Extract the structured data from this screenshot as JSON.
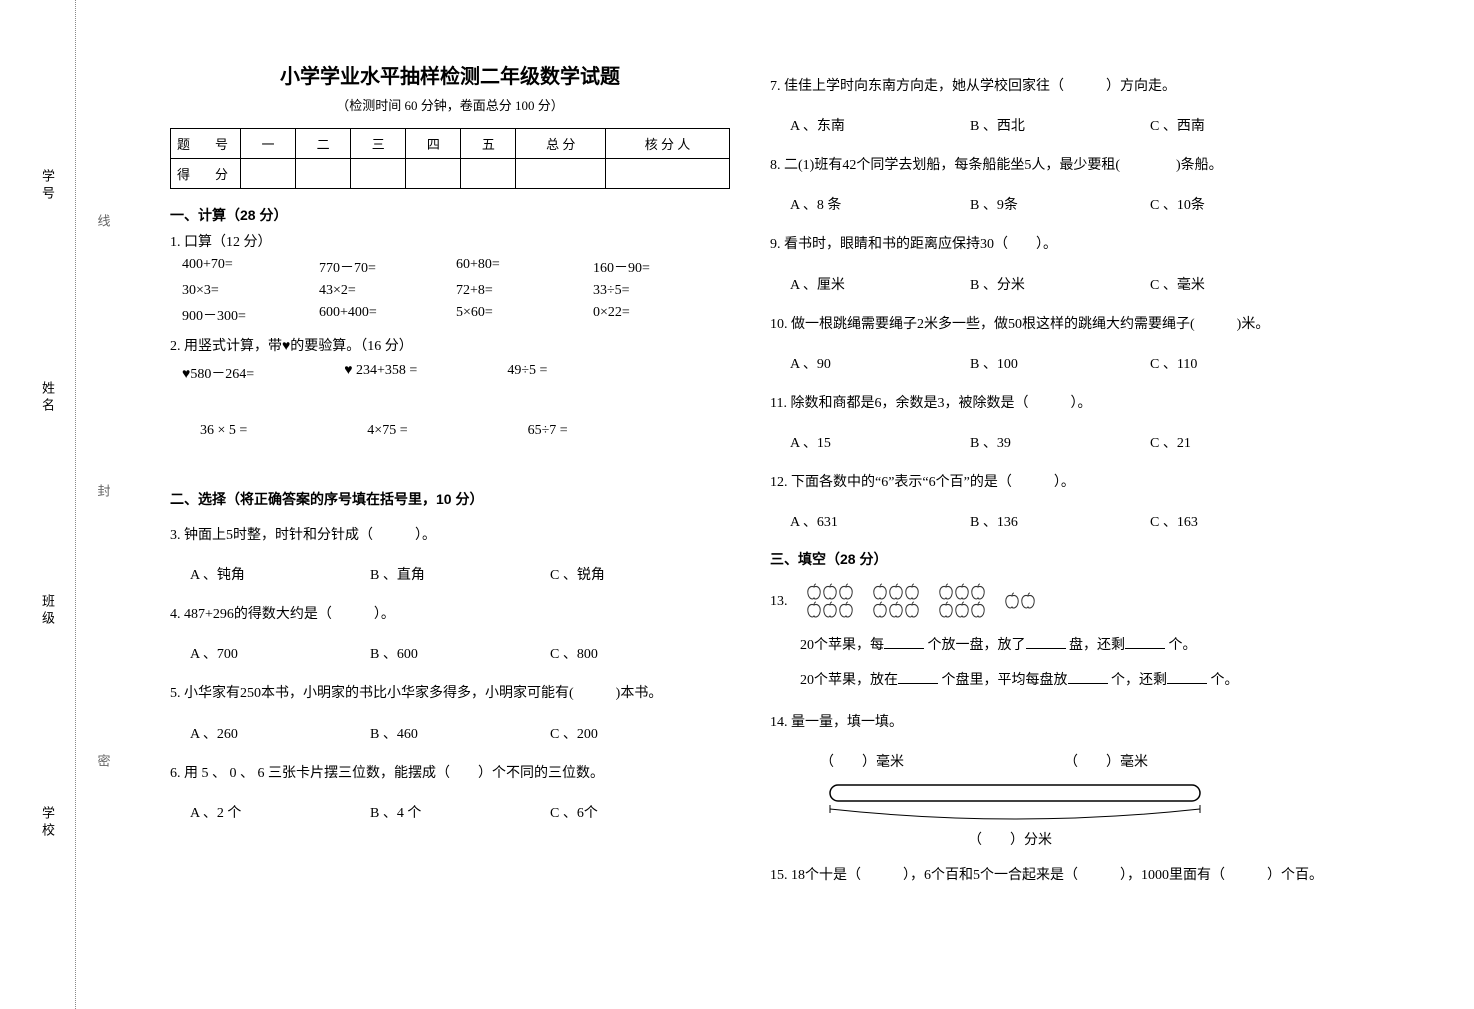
{
  "binding": {
    "labels": [
      "学号",
      "姓名",
      "班级",
      "学校"
    ],
    "dotted": [
      "线",
      "封",
      "密"
    ]
  },
  "header": {
    "title": "小学学业水平抽样检测二年级数学试题",
    "subtitle": "（检测时间 60 分钟，卷面总分 100 分）"
  },
  "score_table": {
    "row1": [
      "题　号",
      "一",
      "二",
      "三",
      "四",
      "五",
      "总 分",
      "核 分 人"
    ],
    "row2_first": "得　分"
  },
  "s1": {
    "head": "一、计算（28 分）",
    "p1_head": "1. 口算（12 分）",
    "grid": [
      "400+70=",
      "770－70=",
      "60+80=",
      "160－90=",
      "30×3=",
      "43×2=",
      "72+8=",
      "33÷5=",
      "900－300=",
      "600+400=",
      "5×60=",
      "0×22="
    ],
    "p2_head": "2. 用竖式计算，带♥的要验算。（16 分）",
    "row_a": [
      "♥580－264=",
      "♥ 234+358 =",
      "49÷5 ="
    ],
    "row_b": [
      "36 × 5 =",
      "4×75 =",
      "65÷7 ="
    ]
  },
  "s2": {
    "head": "二、选择（将正确答案的序号填在括号里，10 分）",
    "q3": "3. 钟面上5时整，时针和分针成（　　　）。",
    "q3_opts": [
      "A 、钝角",
      "B 、直角",
      "C 、锐角"
    ],
    "q4": "4. 487+296的得数大约是（　　　）。",
    "q4_opts": [
      "A 、700",
      "B 、600",
      "C 、800"
    ],
    "q5": "5. 小华家有250本书，小明家的书比小华家多得多，小明家可能有(　　　)本书。",
    "q5_opts": [
      "A 、260",
      "B 、460",
      "C 、200"
    ],
    "q6": "6. 用 5 、 0 、 6 三张卡片摆三位数，能摆成（　　）个不同的三位数。",
    "q6_opts": [
      "A 、2 个",
      "B 、4 个",
      "C 、6个"
    ],
    "q7": "7. 佳佳上学时向东南方向走，她从学校回家往（　　　）方向走。",
    "q7_opts": [
      "A 、东南",
      "B 、西北",
      "C 、西南"
    ],
    "q8": "8. 二(1)班有42个同学去划船，每条船能坐5人，最少要租(　　　　)条船。",
    "q8_opts": [
      "A 、8 条",
      "B 、9条",
      "C 、10条"
    ],
    "q9": "9. 看书时，眼睛和书的距离应保持30（　　）。",
    "q9_opts": [
      "A 、厘米",
      "B 、分米",
      "C 、毫米"
    ],
    "q10": "10. 做一根跳绳需要绳子2米多一些，做50根这样的跳绳大约需要绳子(　　　)米。",
    "q10_opts": [
      "A 、90",
      "B 、100",
      "C 、110"
    ],
    "q11": "11. 除数和商都是6，余数是3，被除数是（　　　）。",
    "q11_opts": [
      "A 、15",
      "B 、39",
      "C 、21"
    ],
    "q12": "12. 下面各数中的“6”表示“6个百”的是（　　　）。",
    "q12_opts": [
      "A 、631",
      "B 、136",
      "C 、163"
    ]
  },
  "s3": {
    "head": "三、填空（28 分）",
    "q13_label": "13.",
    "q13_line1_a": "20个苹果，每",
    "q13_line1_b": "个放一盘，放了",
    "q13_line1_c": "盘，还剩",
    "q13_line1_d": "个。",
    "q13_line2_a": "20个苹果，放在",
    "q13_line2_b": "个盘里，平均每盘放",
    "q13_line2_c": "个，还剩",
    "q13_line2_d": "个。",
    "q14": "14. 量一量，填一填。",
    "q14_mm": "（　　）毫米",
    "q14_dm": "（　　）分米",
    "q15_a": "15. 18个十是（　　　），6个百和5个一合起来是（　　　），1000里面有（　　　）个百。"
  },
  "colors": {
    "apple_fill": "#ffffff",
    "apple_stroke": "#333333",
    "ruler_stroke": "#000000"
  }
}
